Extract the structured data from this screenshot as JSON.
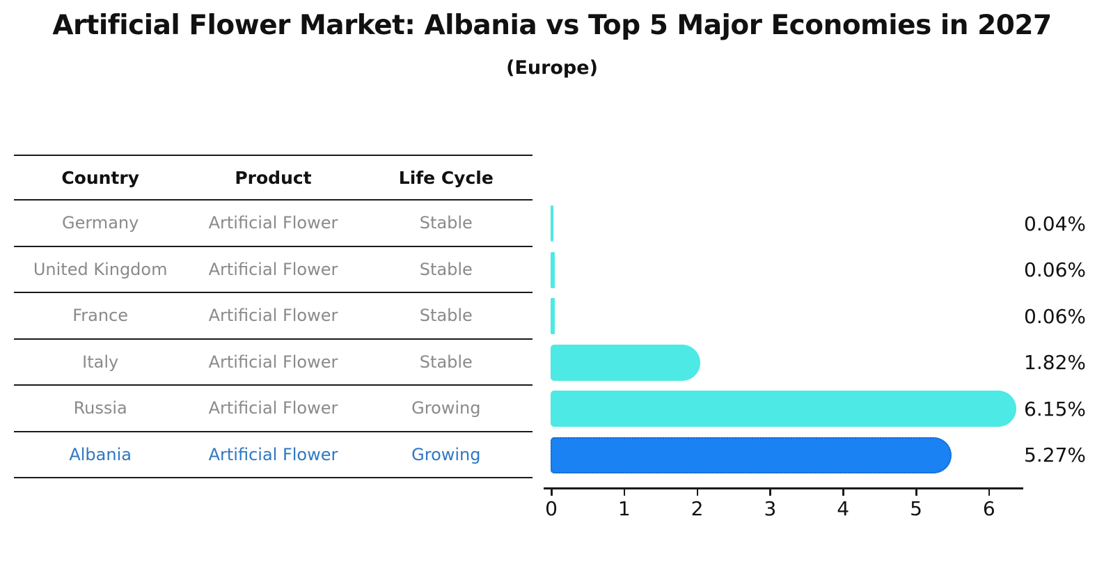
{
  "title": "Artificial Flower Market: Albania vs Top 5 Major Economies in 2027",
  "subtitle": "(Europe)",
  "table": {
    "headers": [
      "Country",
      "Product",
      "Life Cycle"
    ],
    "rows": [
      {
        "country": "Germany",
        "product": "Artificial Flower",
        "life_cycle": "Stable"
      },
      {
        "country": "United Kingdom",
        "product": "Artificial Flower",
        "life_cycle": "Stable"
      },
      {
        "country": "France",
        "product": "Artificial Flower",
        "life_cycle": "Stable"
      },
      {
        "country": "Italy",
        "product": "Artificial Flower",
        "life_cycle": "Stable"
      },
      {
        "country": "Russia",
        "product": "Artificial Flower",
        "life_cycle": "Growing"
      },
      {
        "country": "Albania",
        "product": "Artificial Flower",
        "life_cycle": "Growing"
      }
    ],
    "highlight_row": "Albania"
  },
  "chart_data": {
    "type": "bar",
    "orientation": "horizontal",
    "title": "Artificial Flower Market: Albania vs Top 5 Major Economies in 2027",
    "subtitle": "(Europe)",
    "categories": [
      "Germany",
      "United Kingdom",
      "France",
      "Italy",
      "Russia",
      "Albania"
    ],
    "values": [
      0.04,
      0.06,
      0.06,
      1.82,
      6.15,
      5.27
    ],
    "value_labels": [
      "0.04%",
      "0.06%",
      "0.06%",
      "1.82%",
      "6.15%",
      "5.27%"
    ],
    "xlabel": "",
    "ylabel": "",
    "xlim": [
      0,
      6.5
    ],
    "xticks": [
      0,
      1,
      2,
      3,
      4,
      5,
      6
    ],
    "grid": false,
    "legend": false,
    "highlight_index": 5,
    "highlight_style": "dotted-border"
  },
  "colors": {
    "background": "#ffffff",
    "bar_cyan": "#4DE9E4",
    "bar_blue": "#1A82F2",
    "bar_blue_border": "#1565CE",
    "text_dark": "#111111",
    "text_gray": "#8a8a8a",
    "text_blue": "#2E78C4",
    "line": "#1a1a1a"
  }
}
